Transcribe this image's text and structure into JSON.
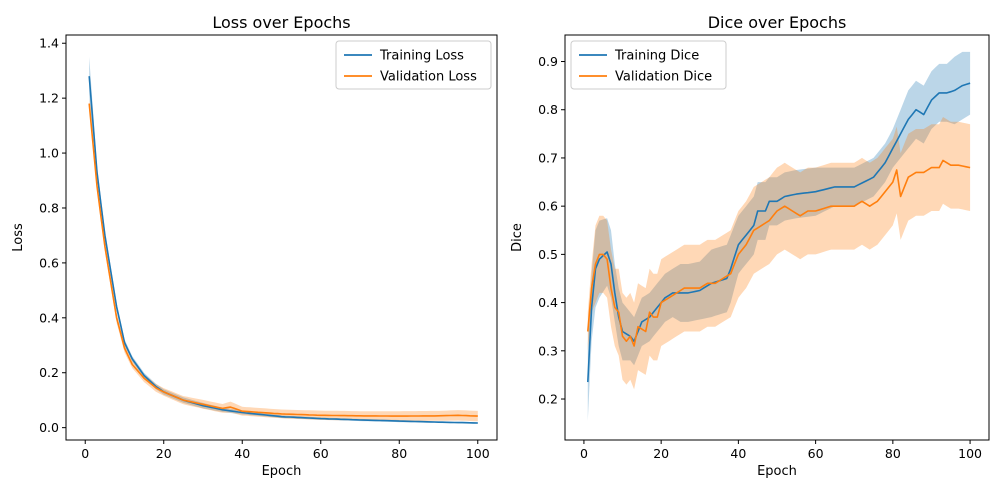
{
  "colors": {
    "training": "#1f77b4",
    "validation": "#ff7f0e"
  },
  "chart_data": [
    {
      "type": "line",
      "title": "Loss over Epochs",
      "xlabel": "Epoch",
      "ylabel": "Loss",
      "xlim": [
        -4.9,
        104.9
      ],
      "ylim": [
        -0.045,
        1.43
      ],
      "xticks": [
        0,
        20,
        40,
        60,
        80,
        100
      ],
      "yticks": [
        0.0,
        0.2,
        0.4,
        0.6,
        0.8,
        1.0,
        1.2,
        1.4
      ],
      "ytick_labels": [
        "0.0",
        "0.2",
        "0.4",
        "0.6",
        "0.8",
        "1.0",
        "1.2",
        "1.4"
      ],
      "legend": "top-right",
      "grid": false,
      "series": [
        {
          "name": "Training Loss",
          "color": "#1f77b4",
          "x": [
            1,
            3,
            5,
            8,
            10,
            12,
            15,
            18,
            20,
            25,
            30,
            35,
            40,
            50,
            60,
            70,
            80,
            90,
            100
          ],
          "values": [
            1.28,
            0.93,
            0.7,
            0.44,
            0.31,
            0.25,
            0.19,
            0.15,
            0.13,
            0.1,
            0.08,
            0.065,
            0.055,
            0.04,
            0.033,
            0.028,
            0.024,
            0.02,
            0.017
          ],
          "band": [
            0.07,
            0.025,
            0.02,
            0.015,
            0.012,
            0.01,
            0.01,
            0.01,
            0.01,
            0.01,
            0.01,
            0.008,
            0.007,
            0.005,
            0.004,
            0.004,
            0.004,
            0.003,
            0.003
          ]
        },
        {
          "name": "Validation Loss",
          "color": "#ff7f0e",
          "x": [
            1,
            3,
            5,
            8,
            10,
            12,
            15,
            18,
            20,
            25,
            30,
            35,
            37,
            40,
            50,
            60,
            70,
            80,
            90,
            95,
            100
          ],
          "values": [
            1.18,
            0.88,
            0.66,
            0.4,
            0.29,
            0.23,
            0.18,
            0.145,
            0.13,
            0.1,
            0.085,
            0.07,
            0.075,
            0.06,
            0.05,
            0.045,
            0.043,
            0.042,
            0.043,
            0.045,
            0.042
          ],
          "band": [
            0.02,
            0.02,
            0.02,
            0.018,
            0.016,
            0.014,
            0.014,
            0.014,
            0.014,
            0.015,
            0.016,
            0.016,
            0.02,
            0.016,
            0.016,
            0.017,
            0.017,
            0.018,
            0.018,
            0.019,
            0.019
          ]
        }
      ]
    },
    {
      "type": "line",
      "title": "Dice over Epochs",
      "xlabel": "Epoch",
      "ylabel": "Dice",
      "xlim": [
        -4.9,
        104.9
      ],
      "ylim": [
        0.115,
        0.955
      ],
      "xticks": [
        0,
        20,
        40,
        60,
        80,
        100
      ],
      "yticks": [
        0.2,
        0.3,
        0.4,
        0.5,
        0.6,
        0.7,
        0.8,
        0.9
      ],
      "ytick_labels": [
        "0.2",
        "0.3",
        "0.4",
        "0.5",
        "0.6",
        "0.7",
        "0.8",
        "0.9"
      ],
      "legend": "top-left",
      "grid": false,
      "series": [
        {
          "name": "Training Dice",
          "color": "#1f77b4",
          "x": [
            1,
            2,
            3,
            4,
            6,
            7,
            8,
            9,
            10,
            12,
            13,
            15,
            17,
            19,
            21,
            23,
            25,
            27,
            30,
            33,
            35,
            37,
            38,
            40,
            42,
            44,
            45,
            47,
            48,
            50,
            52,
            55,
            60,
            65,
            70,
            75,
            78,
            80,
            82,
            84,
            86,
            88,
            90,
            92,
            94,
            96,
            98,
            100
          ],
          "values": [
            0.235,
            0.39,
            0.47,
            0.49,
            0.505,
            0.48,
            0.42,
            0.37,
            0.34,
            0.33,
            0.32,
            0.36,
            0.37,
            0.39,
            0.41,
            0.42,
            0.42,
            0.42,
            0.425,
            0.44,
            0.445,
            0.45,
            0.47,
            0.52,
            0.54,
            0.56,
            0.59,
            0.59,
            0.61,
            0.61,
            0.62,
            0.625,
            0.63,
            0.64,
            0.64,
            0.66,
            0.69,
            0.72,
            0.75,
            0.78,
            0.8,
            0.79,
            0.82,
            0.835,
            0.835,
            0.84,
            0.85,
            0.855
          ],
          "band": [
            0.08,
            0.07,
            0.08,
            0.08,
            0.07,
            0.07,
            0.06,
            0.06,
            0.06,
            0.05,
            0.05,
            0.05,
            0.05,
            0.05,
            0.05,
            0.05,
            0.06,
            0.06,
            0.06,
            0.07,
            0.07,
            0.07,
            0.07,
            0.06,
            0.06,
            0.06,
            0.06,
            0.06,
            0.05,
            0.05,
            0.05,
            0.05,
            0.05,
            0.04,
            0.04,
            0.04,
            0.04,
            0.04,
            0.05,
            0.06,
            0.06,
            0.06,
            0.06,
            0.06,
            0.06,
            0.07,
            0.07,
            0.065
          ]
        },
        {
          "name": "Validation Dice",
          "color": "#ff7f0e",
          "x": [
            1,
            2,
            3,
            4,
            5,
            6,
            7,
            8,
            9,
            10,
            11,
            12,
            13,
            14,
            16,
            17,
            18,
            19,
            20,
            22,
            24,
            26,
            28,
            30,
            32,
            34,
            36,
            38,
            40,
            42,
            44,
            46,
            48,
            50,
            52,
            54,
            56,
            58,
            60,
            62,
            64,
            66,
            68,
            70,
            72,
            74,
            76,
            78,
            80,
            81,
            82,
            84,
            86,
            88,
            90,
            92,
            93,
            95,
            97,
            100
          ],
          "values": [
            0.34,
            0.43,
            0.48,
            0.5,
            0.5,
            0.49,
            0.43,
            0.39,
            0.38,
            0.33,
            0.32,
            0.33,
            0.31,
            0.35,
            0.34,
            0.38,
            0.37,
            0.37,
            0.4,
            0.41,
            0.42,
            0.43,
            0.43,
            0.43,
            0.44,
            0.44,
            0.45,
            0.46,
            0.5,
            0.52,
            0.55,
            0.56,
            0.57,
            0.59,
            0.6,
            0.59,
            0.58,
            0.59,
            0.59,
            0.595,
            0.6,
            0.6,
            0.6,
            0.6,
            0.61,
            0.6,
            0.61,
            0.63,
            0.65,
            0.675,
            0.62,
            0.66,
            0.67,
            0.67,
            0.68,
            0.68,
            0.695,
            0.685,
            0.685,
            0.68
          ],
          "band": [
            0.04,
            0.05,
            0.08,
            0.08,
            0.08,
            0.08,
            0.08,
            0.08,
            0.09,
            0.09,
            0.09,
            0.09,
            0.09,
            0.09,
            0.09,
            0.09,
            0.09,
            0.09,
            0.09,
            0.09,
            0.09,
            0.09,
            0.09,
            0.09,
            0.09,
            0.09,
            0.09,
            0.09,
            0.09,
            0.09,
            0.09,
            0.09,
            0.09,
            0.09,
            0.09,
            0.09,
            0.09,
            0.09,
            0.09,
            0.09,
            0.09,
            0.09,
            0.09,
            0.09,
            0.09,
            0.09,
            0.09,
            0.09,
            0.09,
            0.09,
            0.09,
            0.09,
            0.09,
            0.09,
            0.09,
            0.09,
            0.09,
            0.09,
            0.09,
            0.09
          ]
        }
      ]
    }
  ]
}
